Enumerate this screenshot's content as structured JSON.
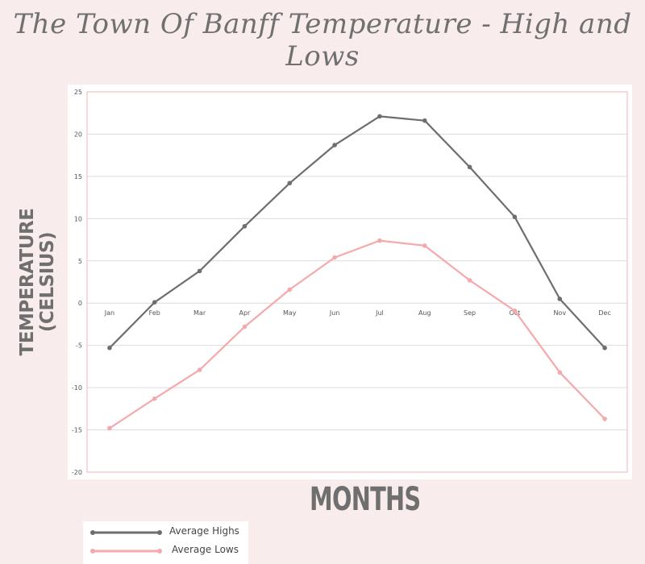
{
  "chart_data": {
    "type": "line",
    "title": "The Town Of Banff Temperature - High and Lows",
    "xlabel": "MONTHS",
    "ylabel_lines": [
      "TEMPERATURE",
      "(CELSIUS)"
    ],
    "categories": [
      "Jan",
      "Feb",
      "Mar",
      "Apr",
      "May",
      "Jun",
      "Jul",
      "Aug",
      "Sep",
      "Oct",
      "Nov",
      "Dec"
    ],
    "yticks": [
      "25",
      "20",
      "15",
      "10",
      "5",
      "0",
      "-5",
      "-10",
      "-15",
      "-20"
    ],
    "ylim": [
      -20,
      25
    ],
    "grid": true,
    "legend_position": "bottom-left",
    "series": [
      {
        "name": "Average Highs",
        "color": "#6e6e6e",
        "values": [
          -5.3,
          0.1,
          3.8,
          9.1,
          14.2,
          18.7,
          22.1,
          21.6,
          16.1,
          10.2,
          0.5,
          -5.3
        ]
      },
      {
        "name": "Average Lows",
        "color": "#f5a9ad",
        "values": [
          -14.8,
          -11.3,
          -7.9,
          -2.8,
          1.6,
          5.4,
          7.4,
          6.8,
          2.7,
          -0.9,
          -8.2,
          -13.7
        ]
      }
    ]
  },
  "colors": {
    "background": "#f9ecec",
    "plot_border": "#f5c1c4",
    "gridline": "#dcdcdc"
  }
}
